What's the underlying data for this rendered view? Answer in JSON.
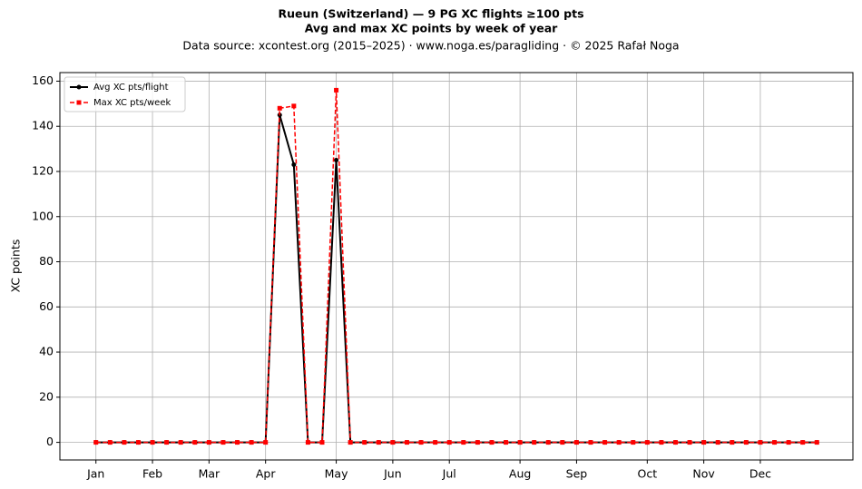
{
  "chart_data": {
    "type": "line",
    "title": "Rueun (Switzerland)  —  9 PG XC flights ≥100 pts",
    "subtitle": "Avg and max XC points by week of year",
    "source": "Data source: xcontest.org (2015–2025)  ·  www.noga.es/paragliding  ·  © 2025 Rafał Noga",
    "ylabel": "XC points",
    "x": [
      1,
      2,
      3,
      4,
      5,
      6,
      7,
      8,
      9,
      10,
      11,
      12,
      13,
      14,
      15,
      16,
      17,
      18,
      19,
      20,
      21,
      22,
      23,
      24,
      25,
      26,
      27,
      28,
      29,
      30,
      31,
      32,
      33,
      34,
      35,
      36,
      37,
      38,
      39,
      40,
      41,
      42,
      43,
      44,
      45,
      46,
      47,
      48,
      49,
      50,
      51,
      52
    ],
    "series": [
      {
        "name": "Avg XC pts/flight",
        "color": "#000000",
        "marker": "circle",
        "dashed": false,
        "values": [
          0,
          0,
          0,
          0,
          0,
          0,
          0,
          0,
          0,
          0,
          0,
          0,
          0,
          145,
          123,
          0,
          0,
          125,
          0,
          0,
          0,
          0,
          0,
          0,
          0,
          0,
          0,
          0,
          0,
          0,
          0,
          0,
          0,
          0,
          0,
          0,
          0,
          0,
          0,
          0,
          0,
          0,
          0,
          0,
          0,
          0,
          0,
          0,
          0,
          0,
          0,
          0
        ]
      },
      {
        "name": "Max XC pts/week",
        "color": "#ff0000",
        "marker": "square",
        "dashed": true,
        "values": [
          0,
          0,
          0,
          0,
          0,
          0,
          0,
          0,
          0,
          0,
          0,
          0,
          0,
          148,
          149,
          0,
          0,
          156,
          0,
          0,
          0,
          0,
          0,
          0,
          0,
          0,
          0,
          0,
          0,
          0,
          0,
          0,
          0,
          0,
          0,
          0,
          0,
          0,
          0,
          0,
          0,
          0,
          0,
          0,
          0,
          0,
          0,
          0,
          0,
          0,
          0,
          0
        ]
      }
    ],
    "xlim": [
      -1.55,
      54.55
    ],
    "xticks": [
      {
        "value": 1,
        "label": "Jan"
      },
      {
        "value": 5,
        "label": "Feb"
      },
      {
        "value": 9,
        "label": "Mar"
      },
      {
        "value": 13,
        "label": "Apr"
      },
      {
        "value": 18,
        "label": "May"
      },
      {
        "value": 22,
        "label": "Jun"
      },
      {
        "value": 26,
        "label": "Jul"
      },
      {
        "value": 31,
        "label": "Aug"
      },
      {
        "value": 35,
        "label": "Sep"
      },
      {
        "value": 40,
        "label": "Oct"
      },
      {
        "value": 44,
        "label": "Nov"
      },
      {
        "value": 48,
        "label": "Dec"
      }
    ],
    "ylim": [
      -7.8,
      163.8
    ],
    "yticks": [
      0,
      20,
      40,
      60,
      80,
      100,
      120,
      140,
      160
    ],
    "grid": true,
    "legend": "upper left"
  }
}
